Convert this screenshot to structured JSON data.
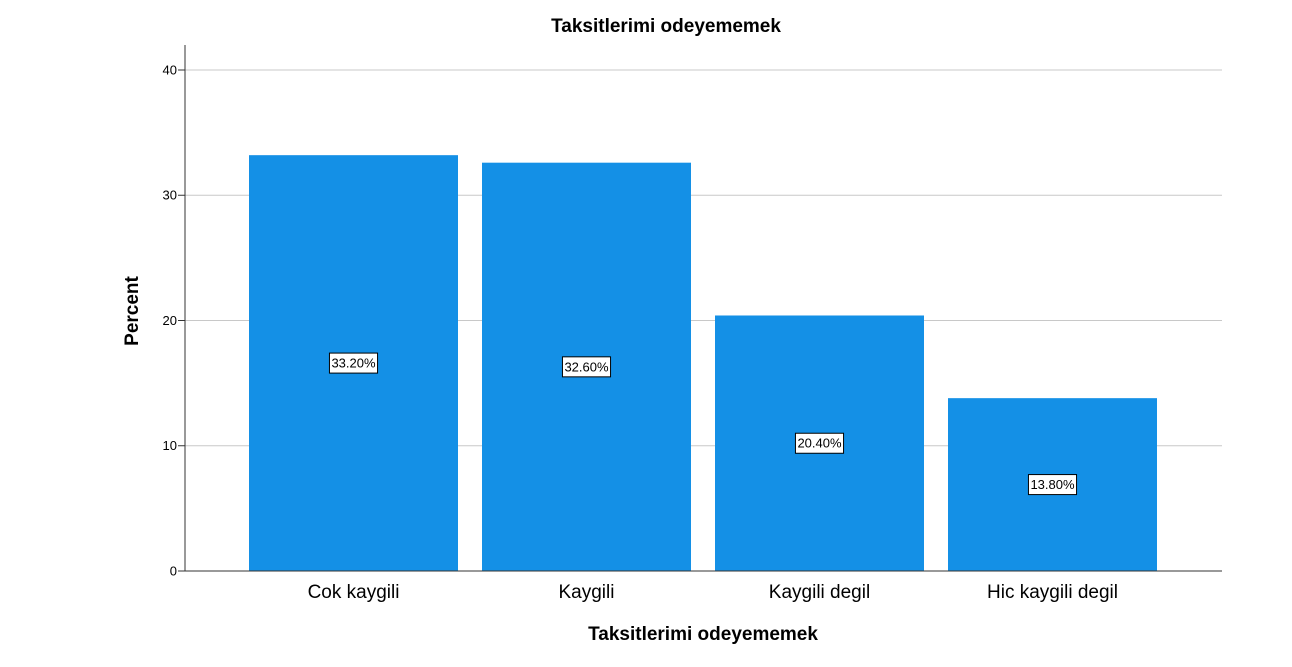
{
  "chart_data": {
    "type": "bar",
    "title": "Taksitlerimi odeyememek",
    "x_label": "Taksitlerimi odeyememek",
    "y_label": "Percent",
    "categories": [
      "Cok kaygili",
      "Kaygili",
      "Kaygili degil",
      "Hic kaygili degil"
    ],
    "values": [
      33.2,
      32.6,
      20.4,
      13.8
    ],
    "value_labels": [
      "33.20%",
      "32.60%",
      "20.40%",
      "13.80%"
    ],
    "color": "#1490e6",
    "ylim": [
      0,
      40
    ],
    "yticks": [
      0,
      10,
      20,
      30,
      40
    ],
    "grid": true
  }
}
